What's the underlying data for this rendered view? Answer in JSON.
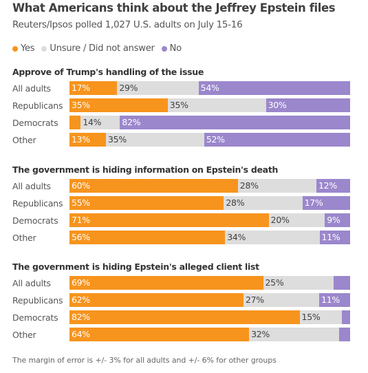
{
  "title": "What Americans think about the Jeffrey Epstein files",
  "subtitle": "Reuters/Ipsos polled 1,027 U.S. adults on July 15-16",
  "legend": [
    {
      "label": "Yes",
      "color": "#f7941d"
    },
    {
      "label": "Unsure / Did not answer",
      "color": "#dddddd"
    },
    {
      "label": "No",
      "color": "#9b87cc"
    }
  ],
  "footnote": "The margin of error is +/- 3% for all adults and +/- 6% for other groups",
  "chart_data": {
    "type": "bar",
    "stacked": true,
    "orientation": "horizontal",
    "percent_stacked": true,
    "series_names": [
      "Yes",
      "Unsure / Did not answer",
      "No"
    ],
    "series_colors": [
      "#f7941d",
      "#dddddd",
      "#9b87cc"
    ],
    "panels": [
      {
        "title": "Approve of Trump's handling of the issue",
        "rows": [
          {
            "label": "All adults",
            "values": [
              17,
              29,
              54
            ],
            "labels": [
              "17%",
              "29%",
              "54%"
            ]
          },
          {
            "label": "Republicans",
            "values": [
              35,
              35,
              30
            ],
            "labels": [
              "35%",
              "35%",
              "30%"
            ]
          },
          {
            "label": "Democrats",
            "values": [
              4,
              14,
              82
            ],
            "labels": [
              "",
              "14%",
              "82%"
            ]
          },
          {
            "label": "Other",
            "values": [
              13,
              35,
              52
            ],
            "labels": [
              "13%",
              "35%",
              "52%"
            ]
          }
        ]
      },
      {
        "title": "The government is hiding information on Epstein's death",
        "rows": [
          {
            "label": "All adults",
            "values": [
              60,
              28,
              12
            ],
            "labels": [
              "60%",
              "28%",
              "12%"
            ]
          },
          {
            "label": "Republicans",
            "values": [
              55,
              28,
              17
            ],
            "labels": [
              "55%",
              "28%",
              "17%"
            ]
          },
          {
            "label": "Democrats",
            "values": [
              71,
              20,
              9
            ],
            "labels": [
              "71%",
              "20%",
              "9%"
            ]
          },
          {
            "label": "Other",
            "values": [
              56,
              34,
              11
            ],
            "labels": [
              "56%",
              "34%",
              "11%"
            ]
          }
        ]
      },
      {
        "title": "The government is hiding Epstein's alleged client list",
        "rows": [
          {
            "label": "All adults",
            "values": [
              69,
              25,
              6
            ],
            "labels": [
              "69%",
              "25%",
              ""
            ]
          },
          {
            "label": "Republicans",
            "values": [
              62,
              27,
              11
            ],
            "labels": [
              "62%",
              "27%",
              "11%"
            ]
          },
          {
            "label": "Democrats",
            "values": [
              82,
              15,
              3
            ],
            "labels": [
              "82%",
              "15%",
              ""
            ]
          },
          {
            "label": "Other",
            "values": [
              64,
              32,
              4
            ],
            "labels": [
              "64%",
              "32%",
              ""
            ]
          }
        ]
      }
    ]
  }
}
